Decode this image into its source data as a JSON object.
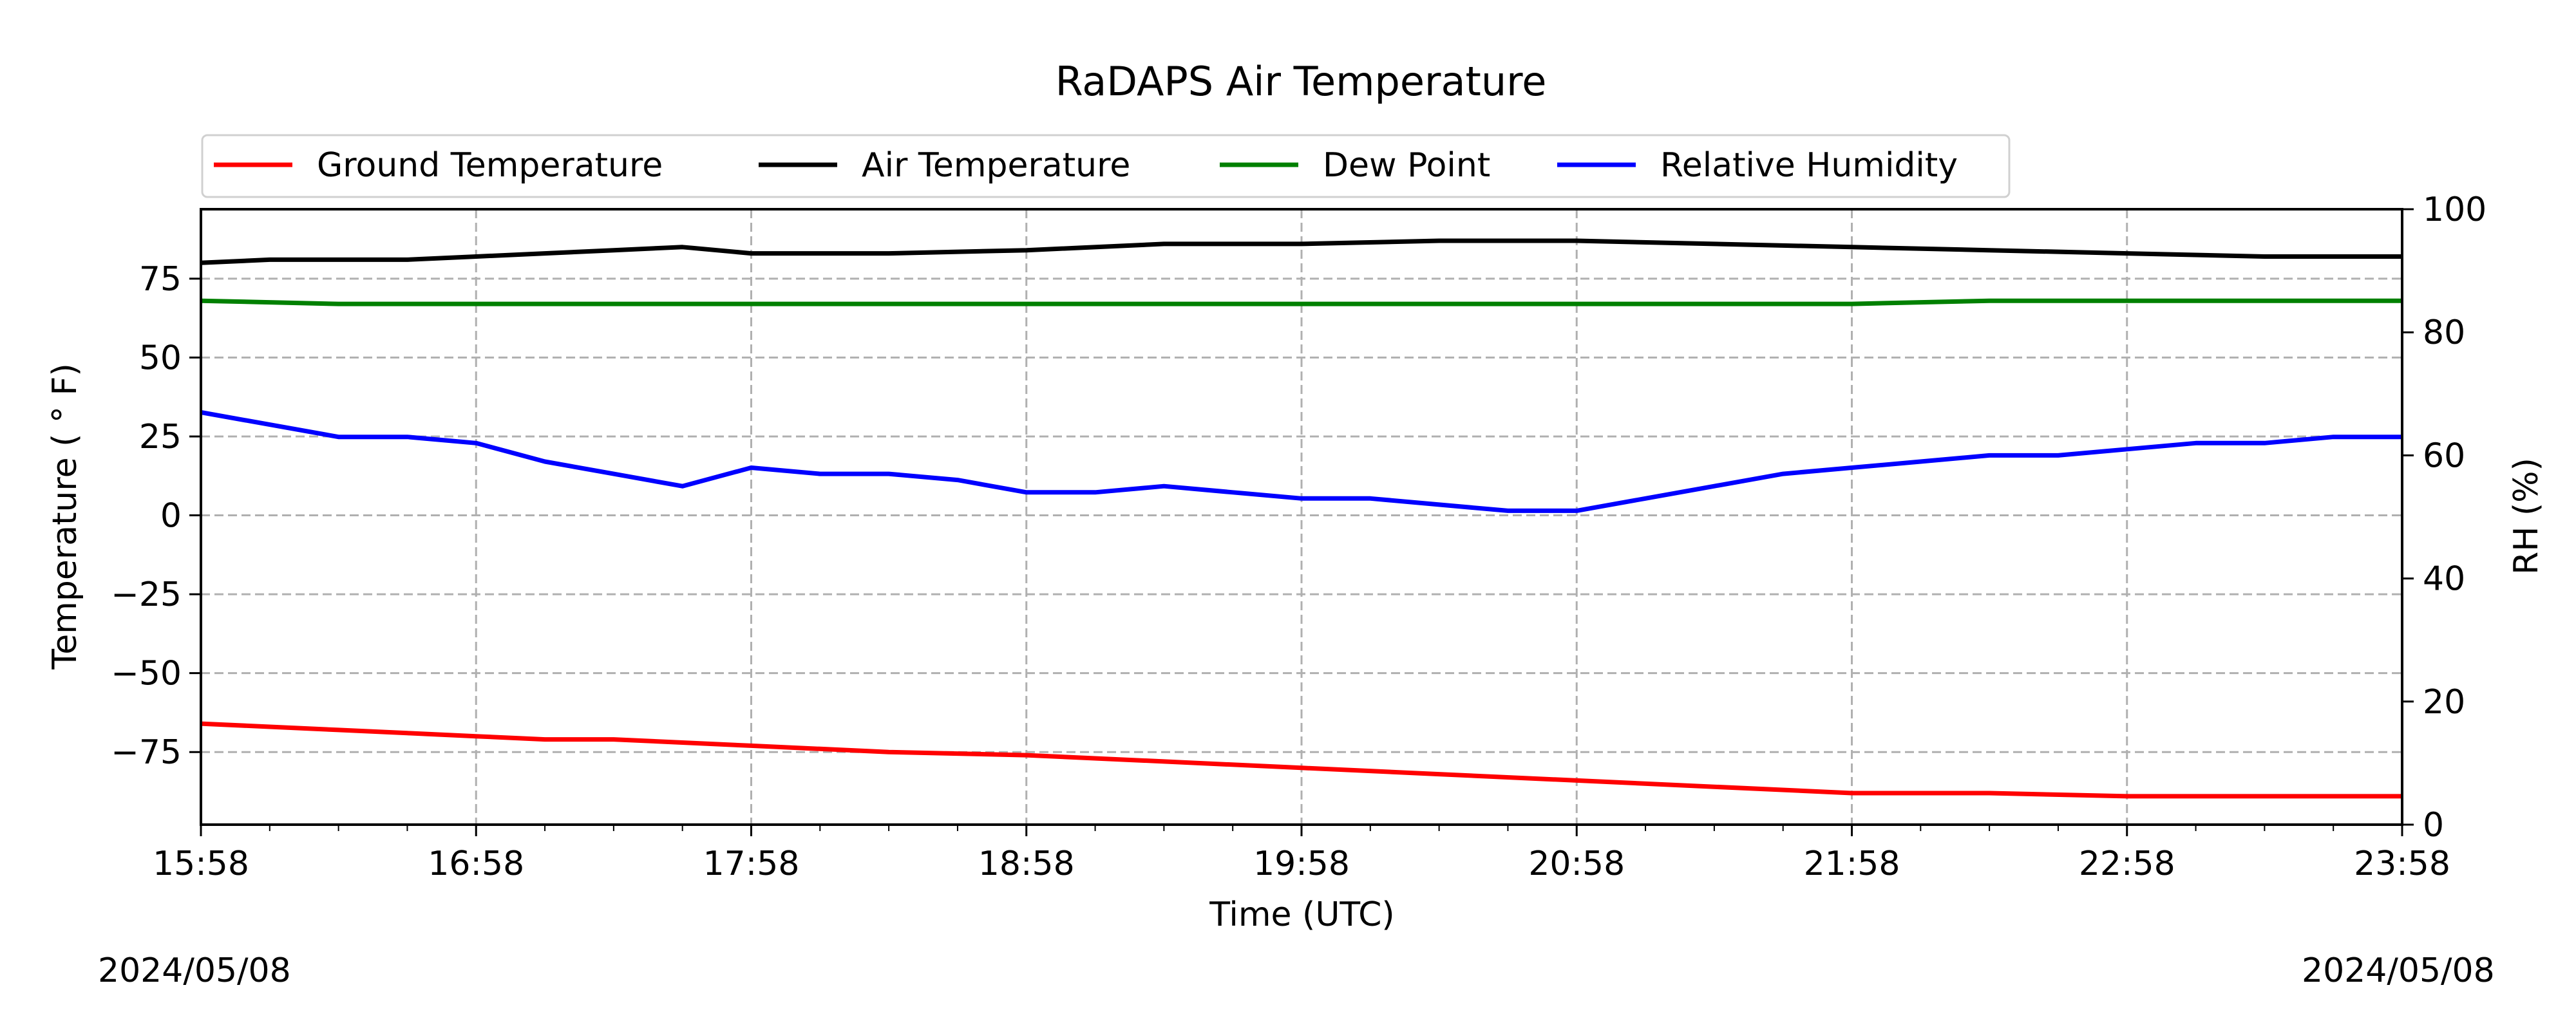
{
  "chart_data": {
    "type": "line",
    "title": "RaDAPS Air Temperature",
    "xlabel": "Time (UTC)",
    "ylabel": "Temperature ($^\\circ$F)",
    "ylabel_display": "Temperature ( ° F)",
    "y2label": "RH (%)",
    "x_ticks": [
      "15:58",
      "16:58",
      "17:58",
      "18:58",
      "19:58",
      "20:58",
      "21:58",
      "22:58",
      "23:58"
    ],
    "y_ticks": [
      75,
      50,
      25,
      0,
      -25,
      -50,
      -75
    ],
    "y2_ticks": [
      100,
      80,
      60,
      40,
      20,
      0
    ],
    "ylim": [
      -98,
      97
    ],
    "y2lim": [
      0,
      100
    ],
    "xlim_hours": [
      0,
      8
    ],
    "grid": true,
    "legend_placement": "top, above plot",
    "date_left": "2024/05/08",
    "date_right": "2024/05/08",
    "series": [
      {
        "name": "Ground Temperature",
        "color": "#ff0000",
        "axis": "left",
        "x_hours": [
          0,
          0.25,
          0.5,
          0.75,
          1,
          1.25,
          1.5,
          1.75,
          2,
          2.25,
          2.5,
          3,
          3.5,
          4,
          4.5,
          5,
          5.5,
          6,
          6.5,
          7,
          7.5,
          8
        ],
        "values": [
          -66,
          -67,
          -68,
          -69,
          -70,
          -71,
          -71,
          -72,
          -73,
          -74,
          -75,
          -76,
          -78,
          -80,
          -82,
          -84,
          -86,
          -88,
          -88,
          -89,
          -89,
          -89
        ]
      },
      {
        "name": "Air Temperature",
        "color": "#000000",
        "axis": "left",
        "x_hours": [
          0,
          0.25,
          0.5,
          0.75,
          1,
          1.25,
          1.5,
          1.75,
          2,
          2.25,
          2.5,
          3,
          3.5,
          4,
          4.5,
          5,
          5.5,
          6,
          6.5,
          7,
          7.5,
          8
        ],
        "values": [
          80,
          81,
          81,
          81,
          82,
          83,
          84,
          85,
          83,
          83,
          83,
          84,
          86,
          86,
          87,
          87,
          86,
          85,
          84,
          83,
          82,
          82
        ]
      },
      {
        "name": "Dew Point",
        "color": "#008000",
        "axis": "left",
        "x_hours": [
          0,
          0.5,
          1,
          1.5,
          2,
          2.5,
          3,
          3.5,
          4,
          4.5,
          5,
          5.5,
          6,
          6.5,
          7,
          7.5,
          8
        ],
        "values": [
          68,
          67,
          67,
          67,
          67,
          67,
          67,
          67,
          67,
          67,
          67,
          67,
          67,
          68,
          68,
          68,
          68
        ]
      },
      {
        "name": "Relative Humidity",
        "color": "#0000ff",
        "axis": "right",
        "x_hours": [
          0,
          0.25,
          0.5,
          0.75,
          1,
          1.25,
          1.5,
          1.75,
          2,
          2.25,
          2.5,
          2.75,
          3,
          3.25,
          3.5,
          3.75,
          4,
          4.25,
          4.5,
          4.75,
          5,
          5.25,
          5.5,
          5.75,
          6,
          6.25,
          6.5,
          6.75,
          7,
          7.25,
          7.5,
          7.75,
          8
        ],
        "values": [
          67,
          65,
          63,
          63,
          62,
          59,
          57,
          55,
          58,
          57,
          57,
          56,
          54,
          54,
          55,
          54,
          53,
          53,
          52,
          51,
          51,
          53,
          55,
          57,
          58,
          59,
          60,
          60,
          61,
          62,
          62,
          63,
          63
        ]
      }
    ]
  }
}
